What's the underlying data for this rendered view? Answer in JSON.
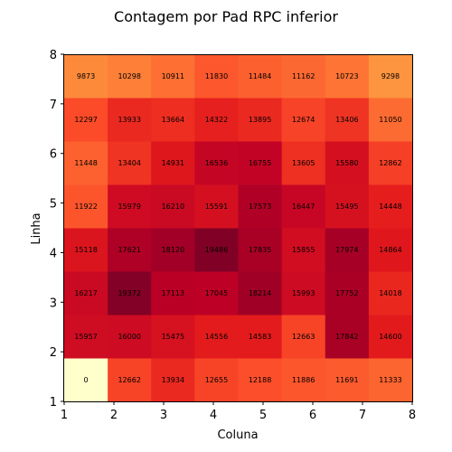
{
  "chart_data": {
    "type": "heatmap",
    "title": "Contagem por Pad RPC inferior",
    "xlabel": "Coluna",
    "ylabel": "Linha",
    "xlim": [
      1,
      8
    ],
    "ylim": [
      1,
      8
    ],
    "x_ticks": [
      "1",
      "2",
      "3",
      "4",
      "5",
      "6",
      "7",
      "8"
    ],
    "y_ticks": [
      "1",
      "2",
      "3",
      "4",
      "5",
      "6",
      "7",
      "8"
    ],
    "colormap": "YlOrRd",
    "vmin": 0,
    "vmax": 19486,
    "grid": false,
    "rows": [
      {
        "linha": 1,
        "values": [
          0,
          12662,
          13934,
          12655,
          12188,
          11886,
          11691,
          11333
        ]
      },
      {
        "linha": 2,
        "values": [
          15957,
          16000,
          15475,
          14556,
          14583,
          12663,
          17842,
          14600
        ]
      },
      {
        "linha": 3,
        "values": [
          16217,
          19372,
          17113,
          17045,
          18214,
          15993,
          17752,
          14018
        ]
      },
      {
        "linha": 4,
        "values": [
          15118,
          17621,
          18120,
          19486,
          17835,
          15855,
          17974,
          14864
        ]
      },
      {
        "linha": 5,
        "values": [
          11922,
          15979,
          16210,
          15591,
          17573,
          16447,
          15495,
          14448
        ]
      },
      {
        "linha": 6,
        "values": [
          11448,
          13404,
          14931,
          16536,
          16755,
          13605,
          15580,
          12862
        ]
      },
      {
        "linha": 7,
        "values": [
          12297,
          13933,
          13664,
          14322,
          13895,
          12674,
          13406,
          11050
        ]
      },
      {
        "linha": 8,
        "values": [
          9873,
          10298,
          10911,
          11830,
          11484,
          11162,
          10723,
          9298
        ]
      }
    ]
  }
}
